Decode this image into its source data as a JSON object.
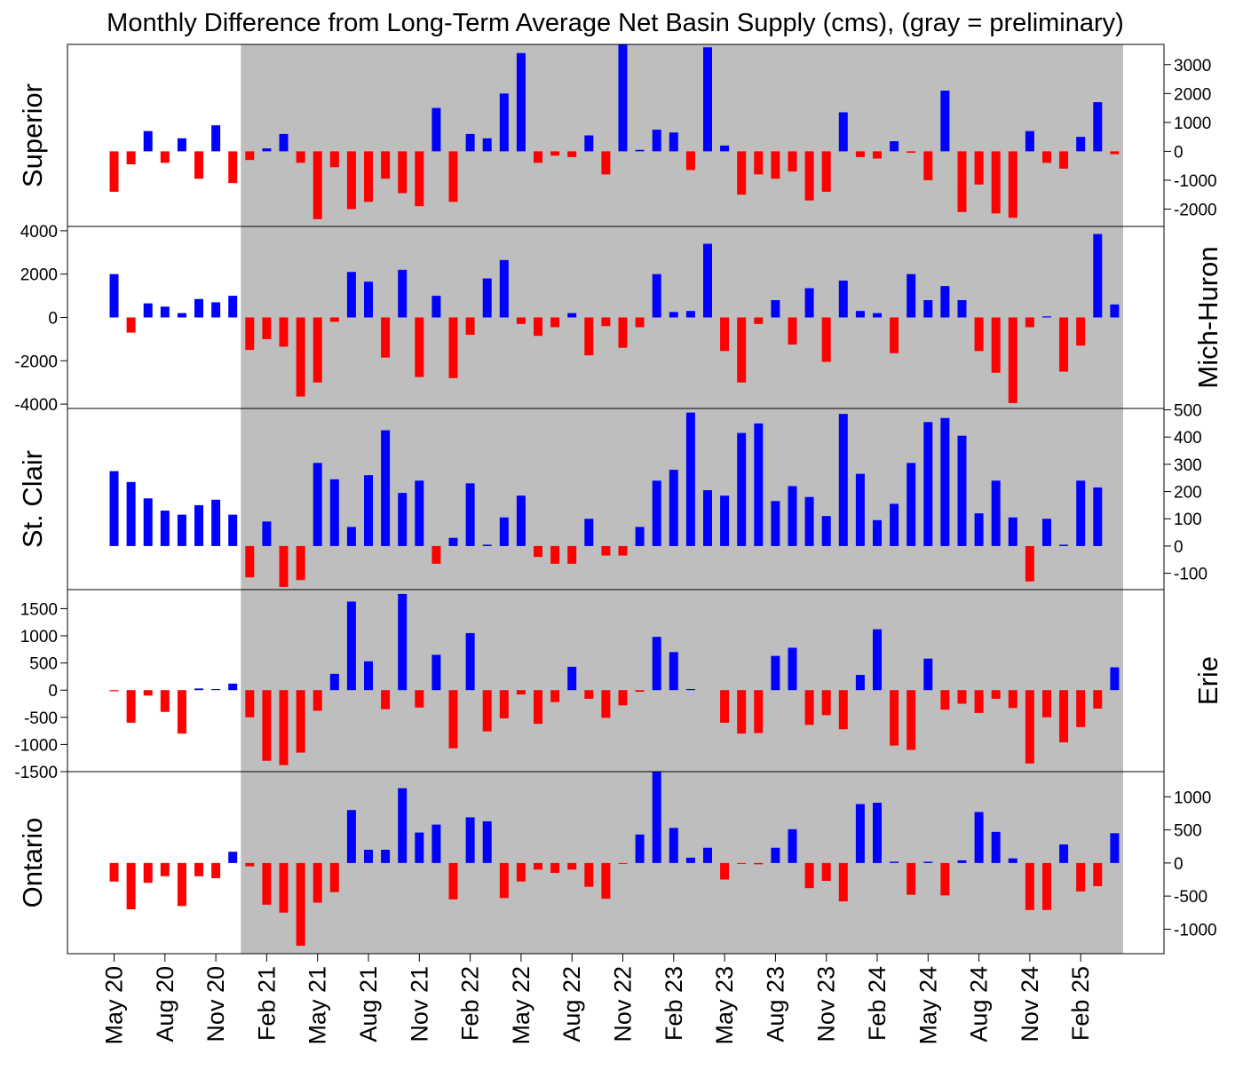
{
  "chart_data": {
    "type": "bar",
    "title": "Monthly Difference from Long-Term Average Net Basin Supply (cms), (gray = preliminary)",
    "x_tick_labels": [
      "May 20",
      "Aug 20",
      "Nov 20",
      "Feb 21",
      "May 21",
      "Aug 21",
      "Nov 21",
      "Feb 22",
      "May 22",
      "Aug 22",
      "Nov 22",
      "Feb 23",
      "May 23",
      "Aug 23",
      "Nov 23",
      "Feb 24",
      "May 24",
      "Aug 24",
      "Nov 24",
      "Feb 25"
    ],
    "months": [
      "May 20",
      "Jun 20",
      "Jul 20",
      "Aug 20",
      "Sep 20",
      "Oct 20",
      "Nov 20",
      "Dec 20",
      "Jan 21",
      "Feb 21",
      "Mar 21",
      "Apr 21",
      "May 21",
      "Jun 21",
      "Jul 21",
      "Aug 21",
      "Sep 21",
      "Oct 21",
      "Nov 21",
      "Dec 21",
      "Jan 22",
      "Feb 22",
      "Mar 22",
      "Apr 22",
      "May 22",
      "Jun 22",
      "Jul 22",
      "Aug 22",
      "Sep 22",
      "Oct 22",
      "Nov 22",
      "Dec 22",
      "Jan 23",
      "Feb 23",
      "Mar 23",
      "Apr 23",
      "May 23",
      "Jun 23",
      "Jul 23",
      "Aug 23",
      "Sep 23",
      "Oct 23",
      "Nov 23",
      "Dec 23",
      "Jan 24",
      "Feb 24",
      "Mar 24",
      "Apr 24",
      "May 24",
      "Jun 24",
      "Jul 24",
      "Aug 24",
      "Sep 24",
      "Oct 24",
      "Nov 24",
      "Dec 24",
      "Jan 25",
      "Feb 25",
      "Mar 25",
      "Apr 25"
    ],
    "preliminary_shading": {
      "from_month": "Jan 21",
      "to_month": "Apr 25",
      "color": "#bebebe"
    },
    "colors": {
      "positive": "#0000ff",
      "negative": "#ff0000",
      "preliminary_background": "#bebebe"
    },
    "series": [
      {
        "name": "Superior",
        "ylim": [
          -2600,
          3700
        ],
        "ticks": [
          3000,
          2000,
          1000,
          0,
          -1000,
          -2000
        ],
        "tick_labels": [
          "3000",
          "2000",
          "1000",
          "0",
          "-1000",
          "-2000"
        ],
        "axis_side": "right",
        "values": [
          -1400,
          -450,
          700,
          -400,
          450,
          -950,
          900,
          -1100,
          -300,
          100,
          600,
          -400,
          -2350,
          -550,
          -2000,
          -1750,
          -950,
          -1450,
          -1900,
          1500,
          -1750,
          600,
          450,
          2000,
          3400,
          -400,
          -150,
          -200,
          550,
          -800,
          3700,
          50,
          750,
          650,
          -650,
          3600,
          200,
          -1500,
          -800,
          -950,
          -700,
          -1700,
          -1400,
          1350,
          -200,
          -250,
          350,
          -50,
          -1000,
          2100,
          -2100,
          -1150,
          -2150,
          -2300,
          700,
          -400,
          -600,
          500,
          1700,
          -100
        ]
      },
      {
        "name": "Mich-Huron",
        "ylim": [
          -4200,
          4200
        ],
        "ticks": [
          4000,
          2000,
          0,
          -2000,
          -4000
        ],
        "tick_labels": [
          "4000",
          "2000",
          "0",
          "-2000",
          "-4000"
        ],
        "axis_side": "left",
        "values": [
          2000,
          -700,
          650,
          500,
          200,
          850,
          700,
          1000,
          -1500,
          -1000,
          -1350,
          -3650,
          -3000,
          -200,
          2100,
          1650,
          -1850,
          2200,
          -2750,
          1000,
          -2800,
          -800,
          1800,
          2650,
          -300,
          -850,
          -450,
          200,
          -1750,
          -400,
          -1400,
          -450,
          2000,
          250,
          300,
          3400,
          -1550,
          -3000,
          -300,
          800,
          -1250,
          1350,
          -2050,
          1700,
          300,
          200,
          -1650,
          2000,
          800,
          1450,
          800,
          -1550,
          -2550,
          -3950,
          -450,
          50,
          -2500,
          -1300,
          3850,
          600
        ]
      },
      {
        "name": "St. Clair",
        "ylim": [
          -160,
          505
        ],
        "ticks": [
          500,
          400,
          300,
          200,
          100,
          0,
          -100
        ],
        "tick_labels": [
          "500",
          "400",
          "300",
          "200",
          "100",
          "0",
          "-100"
        ],
        "axis_side": "right",
        "values": [
          275,
          235,
          175,
          130,
          115,
          150,
          170,
          115,
          -115,
          90,
          -150,
          -125,
          305,
          245,
          70,
          260,
          425,
          195,
          240,
          -65,
          30,
          230,
          5,
          105,
          185,
          -40,
          -65,
          -65,
          100,
          -35,
          -35,
          70,
          240,
          280,
          490,
          205,
          185,
          415,
          450,
          165,
          220,
          180,
          110,
          485,
          265,
          95,
          155,
          305,
          455,
          470,
          405,
          120,
          240,
          105,
          -130,
          100,
          5,
          240,
          215,
          0
        ]
      },
      {
        "name": "Erie",
        "ylim": [
          -1500,
          1850
        ],
        "ticks": [
          1500,
          1000,
          500,
          0,
          -500,
          -1000,
          -1500
        ],
        "tick_labels": [
          "1500",
          "1000",
          "500",
          "0",
          "-500",
          "-1000",
          "-1500"
        ],
        "axis_side": "left",
        "values": [
          -20,
          -600,
          -100,
          -400,
          -800,
          30,
          20,
          120,
          -500,
          -1300,
          -1380,
          -1150,
          -380,
          300,
          1630,
          530,
          -350,
          1770,
          -320,
          650,
          -1070,
          1050,
          -760,
          -520,
          -80,
          -620,
          -220,
          430,
          -160,
          -510,
          -280,
          -30,
          980,
          700,
          20,
          0,
          -600,
          -800,
          -790,
          630,
          780,
          -640,
          -460,
          -720,
          280,
          1120,
          -1020,
          -1100,
          580,
          -360,
          -250,
          -420,
          -160,
          -330,
          -1350,
          -500,
          -960,
          -680,
          -340,
          420
        ]
      },
      {
        "name": "Ontario",
        "ylim": [
          -1370,
          1380
        ],
        "ticks": [
          1000,
          500,
          0,
          -500,
          -1000
        ],
        "tick_labels": [
          "1000",
          "500",
          "0",
          "-500",
          "-1000"
        ],
        "axis_side": "right",
        "values": [
          -280,
          -700,
          -300,
          -200,
          -650,
          -200,
          -230,
          170,
          -50,
          -630,
          -750,
          -1250,
          -600,
          -440,
          800,
          200,
          200,
          1130,
          460,
          580,
          -550,
          690,
          630,
          -530,
          -280,
          -100,
          -150,
          -100,
          -360,
          -540,
          -10,
          430,
          1380,
          530,
          80,
          230,
          -250,
          -10,
          -20,
          230,
          510,
          -380,
          -270,
          -580,
          890,
          910,
          20,
          -480,
          20,
          -490,
          40,
          770,
          470,
          70,
          -710,
          -710,
          280,
          -430,
          -350,
          450
        ]
      }
    ]
  }
}
